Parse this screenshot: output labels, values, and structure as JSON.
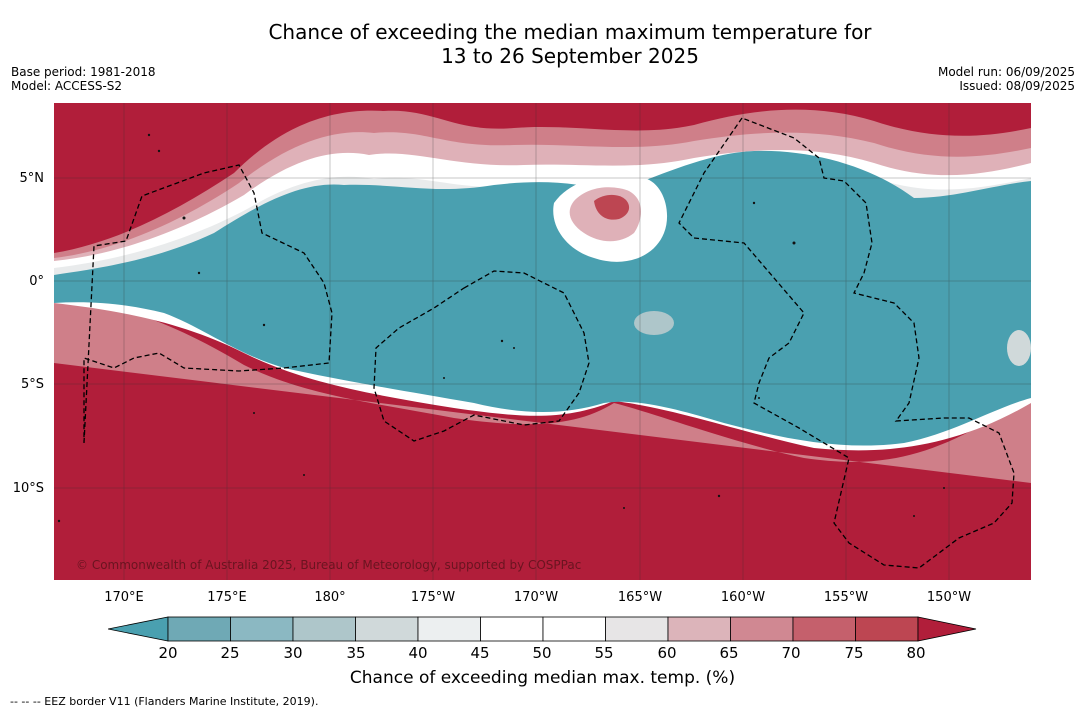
{
  "title": {
    "line1": "Chance of exceeding the median maximum temperature for",
    "line2": "13 to 26 September 2025"
  },
  "meta": {
    "base_period": "Base period: 1981-2018",
    "model": "Model: ACCESS-S2",
    "model_run": "Model run: 06/09/2025",
    "issued": "Issued: 08/09/2025"
  },
  "axes": {
    "lat_labels": [
      "5°N",
      "0°",
      "5°S",
      "10°S"
    ],
    "lon_labels": [
      "170°E",
      "175°E",
      "180°",
      "175°W",
      "170°W",
      "165°W",
      "160°W",
      "155°W",
      "150°W"
    ]
  },
  "copyright": "© Commonwealth of Australia 2025, Bureau of Meteorology, supported by COSPPac",
  "colorbar": {
    "ticks": [
      "20",
      "25",
      "30",
      "35",
      "40",
      "45",
      "50",
      "55",
      "60",
      "65",
      "70",
      "75",
      "80"
    ],
    "label": "Chance of exceeding median max. temp. (%)",
    "colors": [
      "#4aa0b0",
      "#6fa9b5",
      "#8bb8c2",
      "#aec6ca",
      "#d0d9da",
      "#eceff0",
      "#ffffff",
      "#ffffff",
      "#e7e5e6",
      "#dcb4ba",
      "#d08892",
      "#c5606c",
      "#bd4652",
      "#b11e3a"
    ]
  },
  "footnote": "--  --  -- EEZ border V11 (Flanders Marine Institute, 2019)."
}
